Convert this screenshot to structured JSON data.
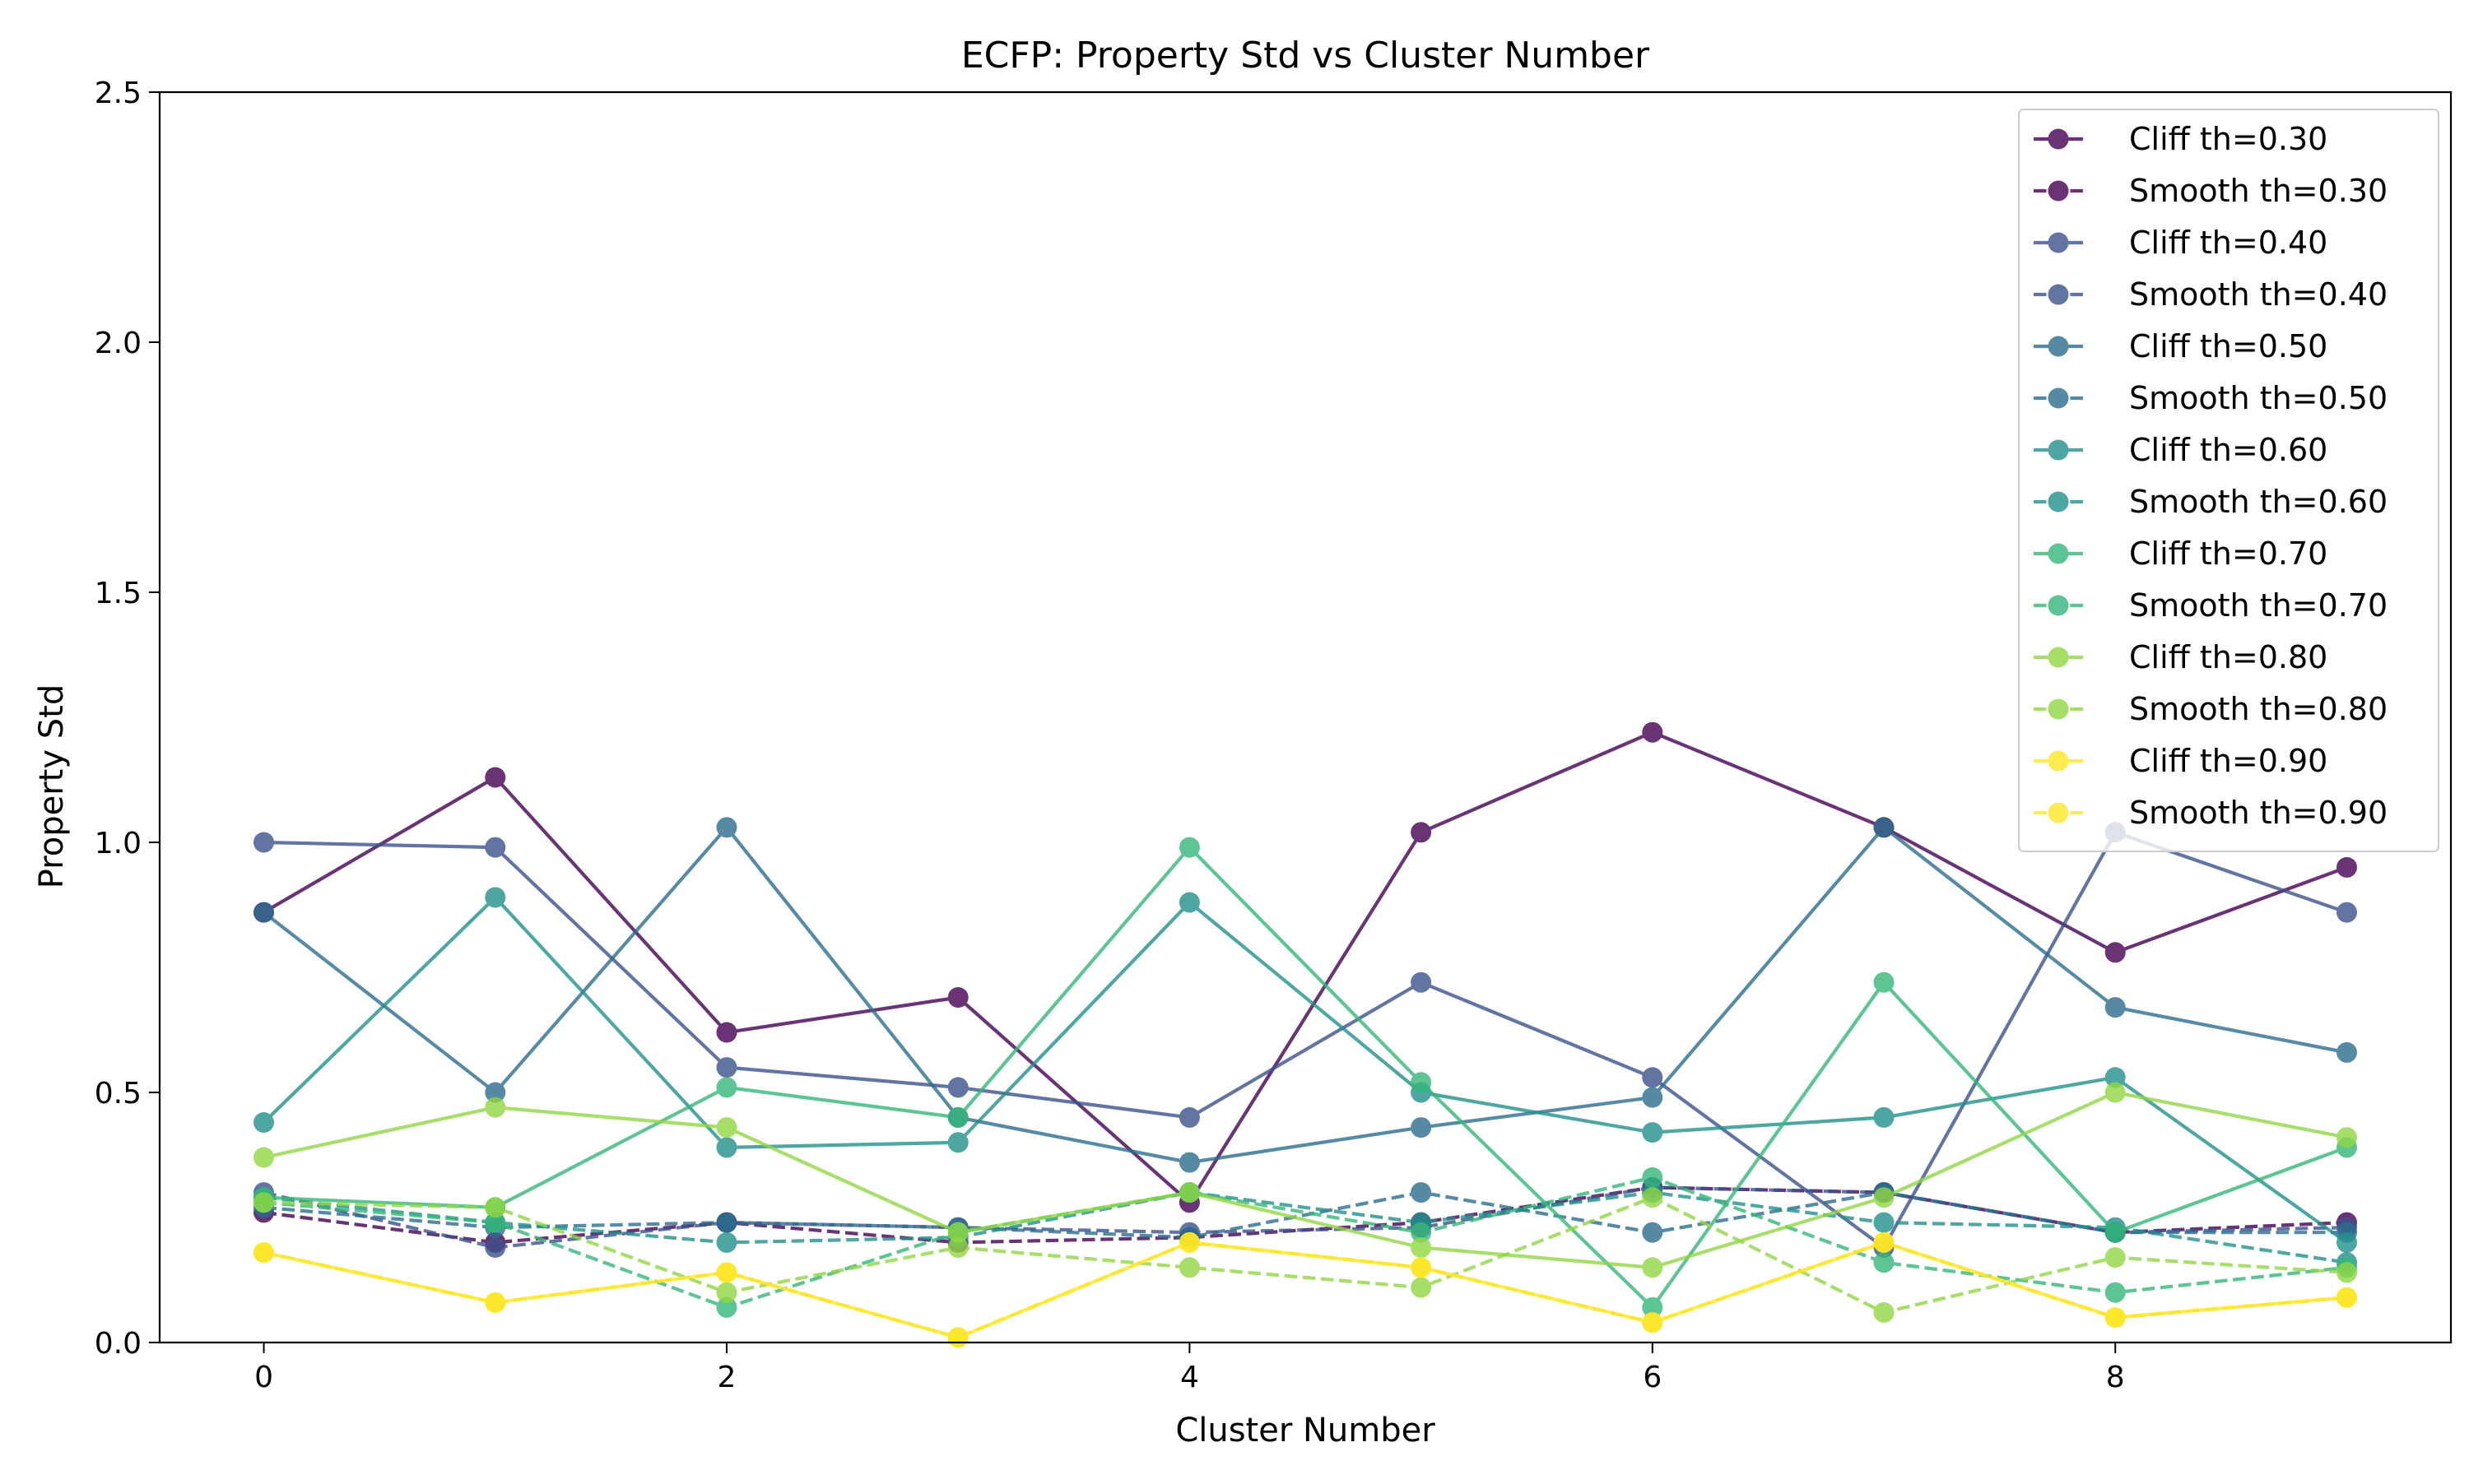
{
  "chart_data": {
    "type": "line",
    "title": "ECFP: Property Std vs Cluster Number",
    "xlabel": "Cluster Number",
    "ylabel": "Property Std",
    "xlim": [
      -0.45,
      9.45
    ],
    "ylim": [
      0,
      2.5
    ],
    "x_ticks": [
      0,
      2,
      4,
      6,
      8
    ],
    "y_ticks": [
      0.0,
      0.5,
      1.0,
      1.5,
      2.0,
      2.5
    ],
    "x_tick_labels": [
      "0",
      "2",
      "4",
      "6",
      "8"
    ],
    "y_tick_labels": [
      "0.0",
      "0.5",
      "1.0",
      "1.5",
      "2.0",
      "2.5"
    ],
    "grid": false,
    "legend_position": "top-right",
    "x": [
      0,
      1,
      2,
      3,
      4,
      5,
      6,
      7,
      8,
      9
    ],
    "series": [
      {
        "name": "Cliff th=0.30",
        "style": "solid",
        "color": "#440154",
        "values": [
          0.86,
          1.13,
          0.62,
          0.69,
          0.28,
          1.02,
          1.22,
          1.03,
          0.78,
          0.95
        ]
      },
      {
        "name": "Smooth th=0.30",
        "style": "dashed",
        "color": "#440154",
        "values": [
          0.26,
          0.2,
          0.24,
          0.2,
          0.21,
          0.24,
          0.31,
          0.3,
          0.22,
          0.24
        ]
      },
      {
        "name": "Cliff th=0.40",
        "style": "solid",
        "color": "#3b528b",
        "values": [
          1.0,
          0.99,
          0.55,
          0.51,
          0.45,
          0.72,
          0.53,
          0.19,
          1.02,
          0.86
        ]
      },
      {
        "name": "Smooth th=0.40",
        "style": "dashed",
        "color": "#3b528b",
        "values": [
          0.3,
          0.19,
          0.24,
          0.23,
          0.22,
          0.23,
          0.31,
          0.3,
          0.22,
          0.23
        ]
      },
      {
        "name": "Cliff th=0.50",
        "style": "solid",
        "color": "#2c6e8e",
        "values": [
          0.86,
          0.5,
          1.03,
          0.45,
          0.36,
          0.43,
          0.49,
          1.03,
          0.67,
          0.58
        ]
      },
      {
        "name": "Smooth th=0.50",
        "style": "dashed",
        "color": "#2c6e8e",
        "values": [
          0.27,
          0.23,
          0.24,
          0.23,
          0.21,
          0.3,
          0.22,
          0.3,
          0.22,
          0.22
        ]
      },
      {
        "name": "Cliff th=0.60",
        "style": "solid",
        "color": "#21918c",
        "values": [
          0.44,
          0.89,
          0.39,
          0.4,
          0.88,
          0.5,
          0.42,
          0.45,
          0.53,
          0.2
        ]
      },
      {
        "name": "Smooth th=0.60",
        "style": "dashed",
        "color": "#21918c",
        "values": [
          0.29,
          0.24,
          0.2,
          0.21,
          0.3,
          0.24,
          0.3,
          0.24,
          0.23,
          0.16
        ]
      },
      {
        "name": "Cliff th=0.70",
        "style": "solid",
        "color": "#35b779",
        "values": [
          0.29,
          0.27,
          0.51,
          0.45,
          0.99,
          0.52,
          0.07,
          0.72,
          0.22,
          0.39
        ]
      },
      {
        "name": "Smooth th=0.70",
        "style": "dashed",
        "color": "#35b779",
        "values": [
          0.28,
          0.24,
          0.07,
          0.22,
          0.3,
          0.22,
          0.33,
          0.16,
          0.1,
          0.15
        ]
      },
      {
        "name": "Cliff th=0.80",
        "style": "solid",
        "color": "#90d743",
        "values": [
          0.37,
          0.47,
          0.43,
          0.22,
          0.3,
          0.19,
          0.15,
          0.29,
          0.5,
          0.41
        ]
      },
      {
        "name": "Smooth th=0.80",
        "style": "dashed",
        "color": "#90d743",
        "values": [
          0.28,
          0.27,
          0.1,
          0.19,
          0.15,
          0.11,
          0.29,
          0.06,
          0.17,
          0.14
        ]
      },
      {
        "name": "Cliff th=0.90",
        "style": "solid",
        "color": "#fde725",
        "values": [
          0.18,
          0.08,
          0.14,
          0.01,
          0.2,
          0.15,
          0.04,
          0.2,
          0.05,
          0.09
        ]
      },
      {
        "name": "Smooth th=0.90",
        "style": "dashed",
        "color": "#fde725",
        "values": [
          0.18,
          0.08,
          0.14,
          0.01,
          0.2,
          0.15,
          0.04,
          0.2,
          0.05,
          0.09
        ]
      }
    ]
  }
}
